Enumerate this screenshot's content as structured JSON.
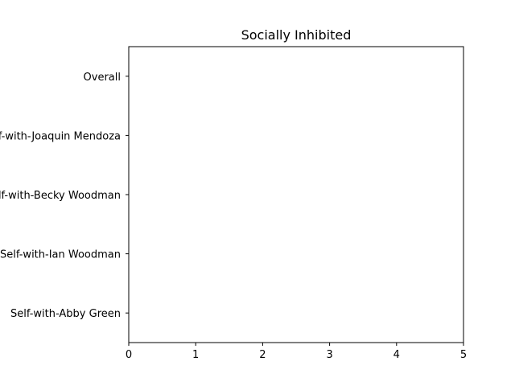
{
  "chart_data": {
    "type": "bar",
    "orientation": "horizontal",
    "title": "Socially Inhibited",
    "xlabel": "",
    "ylabel": "",
    "categories": [
      "Overall",
      "Self-with-Joaquin Mendoza",
      "Self-with-Becky Woodman",
      "Self-with-Ian Woodman",
      "Self-with-Abby Green"
    ],
    "values": [
      0,
      0,
      0,
      0,
      0
    ],
    "xlim": [
      0,
      5
    ],
    "xticks": [
      "0",
      "1",
      "2",
      "3",
      "4",
      "5"
    ],
    "grid": false,
    "colors": {
      "axis": "#000000",
      "background": "#ffffff"
    }
  }
}
